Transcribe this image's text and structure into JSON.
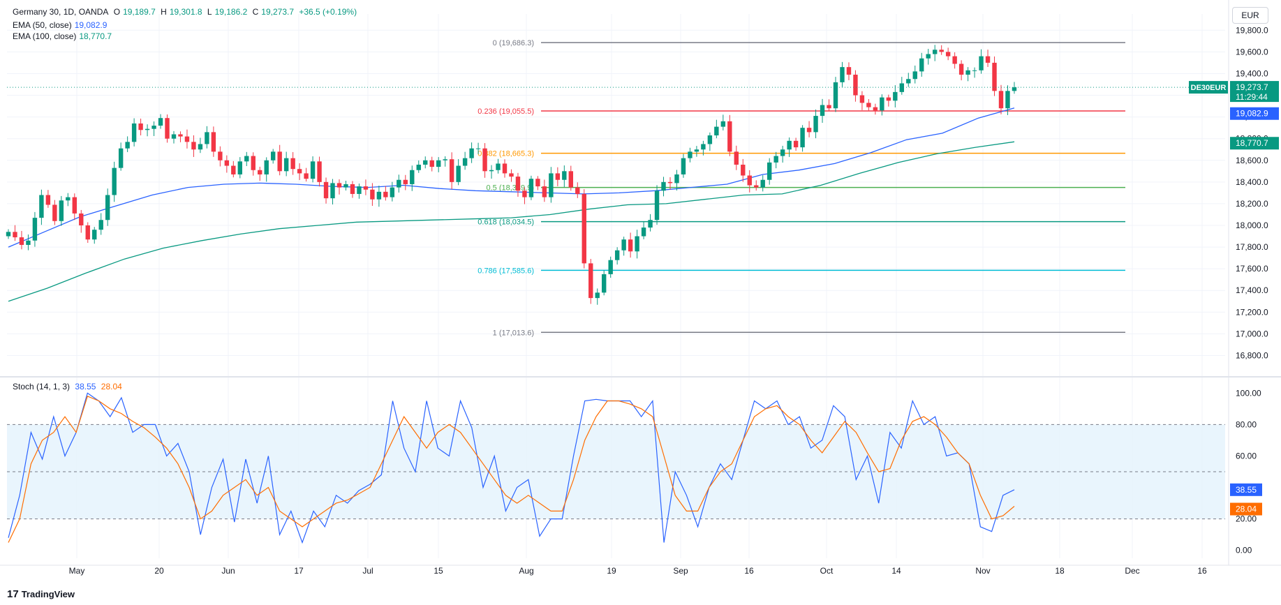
{
  "header": {
    "symbol": "Germany 30, 1D, OANDA",
    "open_label": "O",
    "open": "19,189.7",
    "high_label": "H",
    "high": "19,301.8",
    "low_label": "L",
    "low": "19,186.2",
    "close_label": "C",
    "close": "19,273.7",
    "change": "+36.5 (+0.19%)",
    "ema50_label": "EMA (50, close)",
    "ema50_value": "19,082.9",
    "ema100_label": "EMA (100, close)",
    "ema100_value": "18,770.7"
  },
  "currency_button": "EUR",
  "logo_text": "TradingView",
  "logo_glyph": "17",
  "colors": {
    "up": "#089981",
    "down": "#f23645",
    "ema50": "#2962ff",
    "ema100": "#089981",
    "stoch_k": "#2962ff",
    "stoch_d": "#ff6d00",
    "stoch_band": "#e3f2fd"
  },
  "chart_data": [
    {
      "type": "candlestick",
      "title": "Germany 30, 1D, OANDA",
      "symbol_label": "DE30EUR",
      "last_price": "19,273.7",
      "countdown": "11:29:44",
      "ema50_tag": "19,082.9",
      "ema100_tag": "18,770.7",
      "ylim": [
        16700,
        19950
      ],
      "y_ticks": [
        "19,800.0",
        "19,600.0",
        "19,400.0",
        "19,200.0",
        "19,000.0",
        "18,800.0",
        "18,600.0",
        "18,400.0",
        "18,200.0",
        "18,000.0",
        "17,800.0",
        "17,600.0",
        "17,400.0",
        "17,200.0",
        "17,000.0",
        "16,800.0"
      ],
      "x_ticks": [
        "May",
        "20",
        "Jun",
        "17",
        "Jul",
        "15",
        "Aug",
        "19",
        "Sep",
        "16",
        "Oct",
        "14",
        "Nov",
        "18",
        "Dec",
        "16"
      ],
      "fib_levels": [
        {
          "ratio": 0,
          "price": 19686.3,
          "label": "0 (19,686.3)",
          "color": "#787b86"
        },
        {
          "ratio": 0.236,
          "price": 19055.5,
          "label": "0.236 (19,055.5)",
          "color": "#f23645"
        },
        {
          "ratio": 0.382,
          "price": 18665.3,
          "label": "0.382 (18,665.3)",
          "color": "#ff9800"
        },
        {
          "ratio": 0.5,
          "price": 18349.9,
          "label": "0.5 (18,349.9)",
          "color": "#4caf50"
        },
        {
          "ratio": 0.618,
          "price": 18034.5,
          "label": "0.618 (18,034.5)",
          "color": "#089981"
        },
        {
          "ratio": 0.786,
          "price": 17585.6,
          "label": "0.786 (17,585.6)",
          "color": "#00bcd4"
        },
        {
          "ratio": 1,
          "price": 17013.6,
          "label": "1 (17,013.6)",
          "color": "#787b86"
        }
      ],
      "closes": [
        17940,
        17890,
        17820,
        17860,
        18070,
        18280,
        18190,
        18040,
        18230,
        18260,
        18110,
        18000,
        17870,
        17960,
        18050,
        18280,
        18530,
        18710,
        18770,
        18940,
        18880,
        18890,
        18920,
        18990,
        18800,
        18840,
        18820,
        18770,
        18700,
        18750,
        18860,
        18680,
        18600,
        18550,
        18470,
        18590,
        18640,
        18510,
        18470,
        18600,
        18680,
        18500,
        18620,
        18520,
        18480,
        18430,
        18590,
        18400,
        18250,
        18390,
        18350,
        18380,
        18290,
        18360,
        18330,
        18240,
        18310,
        18260,
        18350,
        18420,
        18380,
        18510,
        18560,
        18600,
        18540,
        18600,
        18610,
        18400,
        18550,
        18620,
        18710,
        18710,
        18500,
        18510,
        18570,
        18480,
        18450,
        18320,
        18260,
        18430,
        18360,
        18260,
        18480,
        18420,
        18500,
        18350,
        18290,
        17650,
        17330,
        17380,
        17550,
        17680,
        17770,
        17870,
        17760,
        17900,
        17980,
        18050,
        18320,
        18400,
        18390,
        18470,
        18620,
        18680,
        18700,
        18750,
        18830,
        18910,
        18960,
        18680,
        18560,
        18460,
        18370,
        18350,
        18420,
        18580,
        18640,
        18700,
        18780,
        18720,
        18900,
        18860,
        19010,
        19110,
        19080,
        19320,
        19460,
        19390,
        19200,
        19130,
        19090,
        19060,
        19180,
        19150,
        19230,
        19310,
        19350,
        19420,
        19540,
        19580,
        19620,
        19600,
        19560,
        19490,
        19390,
        19430,
        19430,
        19560,
        19500,
        19240,
        19080,
        19240,
        19273.7
      ],
      "ema50": [
        17800,
        17940,
        18080,
        18180,
        18280,
        18350,
        18380,
        18390,
        18380,
        18360,
        18350,
        18370,
        18340,
        18320,
        18310,
        18300,
        18290,
        18300,
        18320,
        18350,
        18380,
        18470,
        18510,
        18570,
        18670,
        18790,
        18850,
        18990,
        19082.9
      ],
      "ema100": [
        17300,
        17420,
        17560,
        17690,
        17790,
        17860,
        17920,
        17970,
        18000,
        18030,
        18040,
        18050,
        18060,
        18070,
        18100,
        18150,
        18190,
        18200,
        18240,
        18280,
        18290,
        18370,
        18480,
        18580,
        18660,
        18720,
        18770.7
      ]
    },
    {
      "type": "line",
      "title": "Stoch (14, 1, 3)",
      "series": [
        {
          "name": "%K",
          "last": "38.55",
          "values": [
            8,
            35,
            75,
            58,
            85,
            60,
            75,
            100,
            95,
            85,
            97,
            75,
            80,
            80,
            60,
            68,
            50,
            10,
            40,
            58,
            18,
            58,
            30,
            60,
            10,
            25,
            5,
            25,
            15,
            35,
            30,
            38,
            42,
            48,
            95,
            65,
            50,
            95,
            65,
            60,
            95,
            78,
            40,
            60,
            25,
            40,
            45,
            9,
            20,
            20,
            60,
            95,
            96,
            95,
            95,
            95,
            85,
            95,
            5,
            50,
            35,
            15,
            40,
            55,
            45,
            70,
            95,
            90,
            95,
            80,
            85,
            65,
            70,
            92,
            85,
            45,
            60,
            30,
            75,
            65,
            95,
            80,
            85,
            60,
            62,
            55,
            15,
            12,
            35,
            38.55
          ]
        },
        {
          "name": "%D",
          "last": "28.04",
          "values": [
            5,
            20,
            55,
            70,
            75,
            85,
            75,
            98,
            95,
            90,
            87,
            82,
            78,
            72,
            65,
            55,
            40,
            20,
            25,
            35,
            40,
            45,
            35,
            40,
            25,
            20,
            15,
            20,
            25,
            30,
            32,
            36,
            40,
            55,
            70,
            85,
            75,
            65,
            75,
            80,
            75,
            65,
            55,
            45,
            35,
            30,
            35,
            30,
            25,
            25,
            45,
            70,
            85,
            95,
            95,
            93,
            90,
            85,
            60,
            35,
            25,
            25,
            40,
            50,
            55,
            70,
            85,
            90,
            92,
            85,
            80,
            70,
            62,
            72,
            82,
            75,
            62,
            50,
            52,
            70,
            82,
            85,
            80,
            72,
            62,
            55,
            35,
            20,
            22,
            28.04
          ]
        }
      ],
      "ylim": [
        -5,
        105
      ],
      "y_ticks": [
        "100.00",
        "80.00",
        "60.00",
        "20.00",
        "0.00"
      ],
      "bands": [
        20,
        50,
        80
      ]
    }
  ]
}
